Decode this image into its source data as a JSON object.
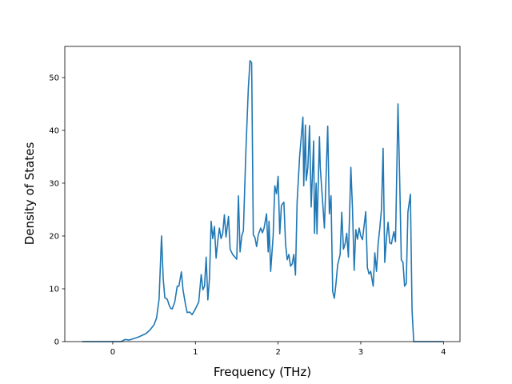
{
  "chart_data": {
    "type": "line",
    "xlabel": "Frequency (THz)",
    "ylabel": "Density of States",
    "color": "#1f77b4",
    "xlim": [
      -0.58,
      4.2
    ],
    "ylim": [
      0,
      55.9
    ],
    "xticks": [
      0,
      1,
      2,
      3,
      4
    ],
    "yticks": [
      0,
      10,
      20,
      30,
      40,
      50
    ],
    "x": [
      -0.37,
      0.1,
      0.15,
      0.2,
      0.3,
      0.4,
      0.45,
      0.5,
      0.53,
      0.56,
      0.59,
      0.61,
      0.63,
      0.66,
      0.68,
      0.7,
      0.72,
      0.75,
      0.78,
      0.8,
      0.83,
      0.85,
      0.88,
      0.9,
      0.93,
      0.96,
      1.0,
      1.04,
      1.07,
      1.09,
      1.11,
      1.13,
      1.15,
      1.17,
      1.19,
      1.21,
      1.23,
      1.25,
      1.27,
      1.29,
      1.31,
      1.33,
      1.35,
      1.37,
      1.4,
      1.42,
      1.45,
      1.5,
      1.52,
      1.54,
      1.56,
      1.58,
      1.61,
      1.64,
      1.66,
      1.68,
      1.7,
      1.72,
      1.74,
      1.76,
      1.79,
      1.81,
      1.83,
      1.86,
      1.88,
      1.89,
      1.91,
      1.94,
      1.96,
      1.98,
      2.0,
      2.02,
      2.04,
      2.07,
      2.09,
      2.11,
      2.13,
      2.15,
      2.17,
      2.19,
      2.21,
      2.23,
      2.26,
      2.3,
      2.31,
      2.33,
      2.34,
      2.36,
      2.38,
      2.4,
      2.43,
      2.44,
      2.46,
      2.47,
      2.5,
      2.51,
      2.56,
      2.6,
      2.62,
      2.64,
      2.66,
      2.68,
      2.7,
      2.72,
      2.75,
      2.77,
      2.79,
      2.81,
      2.83,
      2.85,
      2.88,
      2.9,
      2.92,
      2.94,
      2.96,
      2.98,
      3.0,
      3.02,
      3.06,
      3.08,
      3.1,
      3.12,
      3.15,
      3.17,
      3.19,
      3.21,
      3.23,
      3.25,
      3.27,
      3.29,
      3.31,
      3.33,
      3.35,
      3.37,
      3.4,
      3.42,
      3.45,
      3.47,
      3.49,
      3.51,
      3.53,
      3.55,
      3.57,
      3.6,
      3.62,
      3.64,
      4.0
    ],
    "values": [
      0,
      0,
      0.4,
      0.3,
      0.8,
      1.5,
      2.2,
      3.2,
      4.5,
      8,
      20,
      12,
      8.3,
      8,
      7,
      6.3,
      6.2,
      7.5,
      10.5,
      10.5,
      13.2,
      9.8,
      7,
      5.5,
      5.6,
      5.1,
      6.2,
      7.5,
      12.7,
      9.8,
      10.5,
      16,
      7.9,
      12,
      22.8,
      19.5,
      21.8,
      15.8,
      19,
      21.5,
      19.5,
      20.5,
      24,
      19.8,
      23.7,
      17.5,
      16.5,
      15.6,
      27.6,
      17,
      20,
      21,
      36,
      48,
      53.2,
      52.8,
      20.2,
      19.7,
      18,
      20.2,
      21.5,
      20.6,
      21.5,
      24.2,
      17,
      22.8,
      13.3,
      20,
      29.5,
      28,
      31.3,
      20.4,
      25.8,
      26.4,
      18.5,
      15.5,
      16.5,
      14.3,
      14.7,
      16.5,
      12.6,
      26.5,
      35,
      42.5,
      29.5,
      41,
      30.5,
      33,
      40.9,
      25.5,
      38,
      20.5,
      30,
      20.4,
      38.8,
      33,
      21.5,
      40.8,
      24.2,
      27.6,
      9.5,
      8.2,
      11,
      14.5,
      16.5,
      24.5,
      17.5,
      18.5,
      20.5,
      16,
      33,
      25,
      13.5,
      21.2,
      19.4,
      21.5,
      20,
      19.3,
      24.6,
      14,
      12.8,
      13.3,
      10.5,
      16.8,
      13.3,
      18.5,
      21.5,
      25,
      36.6,
      15,
      19.5,
      22.6,
      18.7,
      18.5,
      20.8,
      18.9,
      45,
      31,
      15.5,
      15,
      10.5,
      11,
      24.5,
      27.9,
      6,
      0,
      0
    ]
  }
}
